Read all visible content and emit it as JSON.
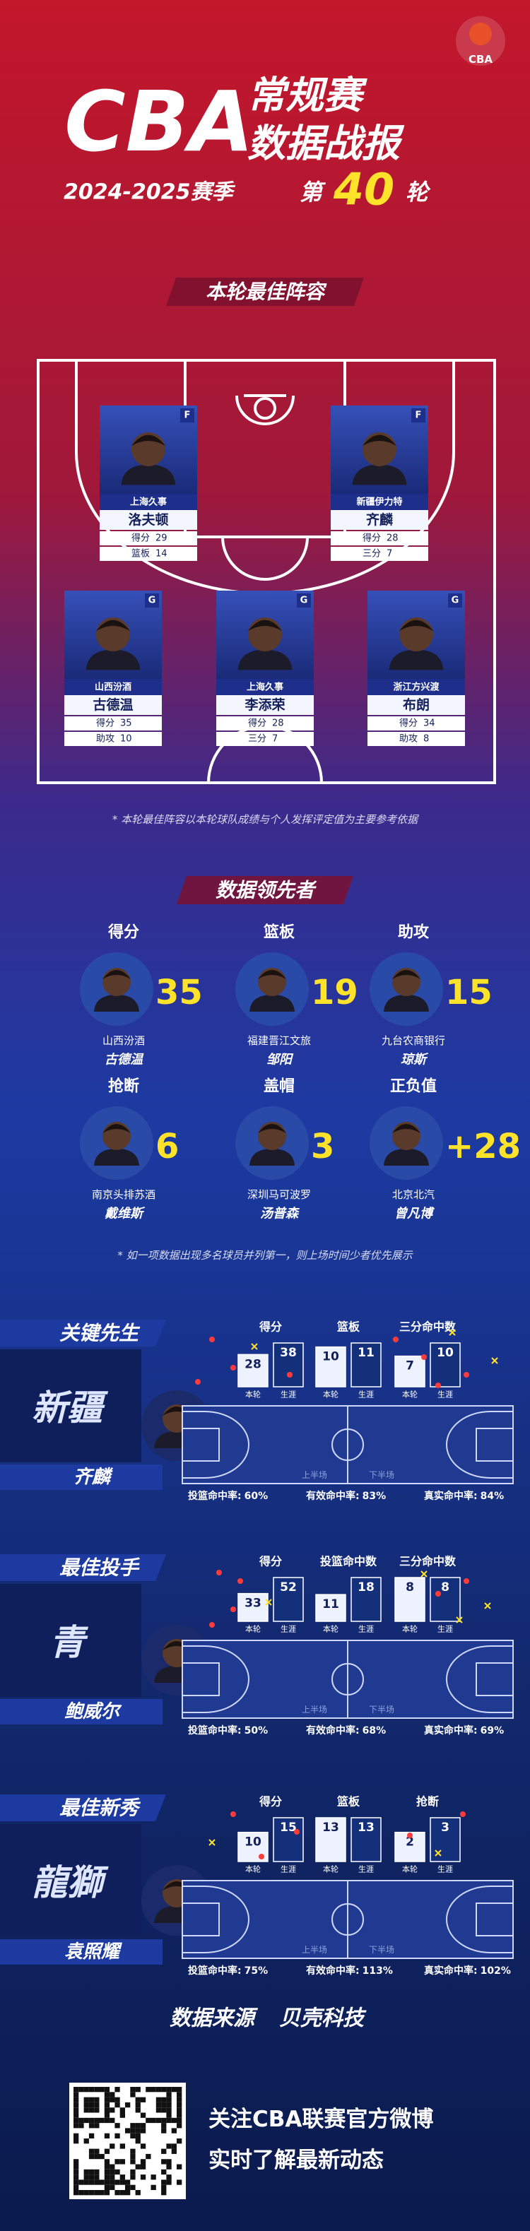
{
  "header": {
    "logo": "CBA",
    "title_main": "CBA",
    "title_line1": "常规赛",
    "title_line2": "数据战报",
    "season": "2024-2025赛季",
    "round_prefix": "第",
    "round": 40,
    "round_suffix": "轮"
  },
  "best_lineup": {
    "title": "本轮最佳阵容",
    "players": [
      {
        "position": "F",
        "team": "上海久事",
        "name": "洛夫顿",
        "stats": [
          {
            "label": "得分",
            "value": 29
          },
          {
            "label": "篮板",
            "value": 14
          }
        ]
      },
      {
        "position": "F",
        "team": "新疆伊力特",
        "name": "齐麟",
        "stats": [
          {
            "label": "得分",
            "value": 28
          },
          {
            "label": "三分",
            "value": 7
          }
        ]
      },
      {
        "position": "G",
        "team": "山西汾酒",
        "name": "古德温",
        "stats": [
          {
            "label": "得分",
            "value": 35
          },
          {
            "label": "助攻",
            "value": 10
          }
        ]
      },
      {
        "position": "G",
        "team": "上海久事",
        "name": "李添荣",
        "stats": [
          {
            "label": "得分",
            "value": 28
          },
          {
            "label": "三分",
            "value": 7
          }
        ]
      },
      {
        "position": "G",
        "team": "浙江方兴渡",
        "name": "布朗",
        "stats": [
          {
            "label": "得分",
            "value": 34
          },
          {
            "label": "助攻",
            "value": 8
          }
        ]
      }
    ],
    "note": "* 本轮最佳阵容以本轮球队成绩与个人发挥评定值为主要参考依据"
  },
  "leaders": {
    "title": "数据领先者",
    "items": [
      {
        "category": "得分",
        "value": 35,
        "team": "山西汾酒",
        "name": "古德温"
      },
      {
        "category": "篮板",
        "value": 19,
        "team": "福建晋江文旅",
        "name": "邹阳"
      },
      {
        "category": "助攻",
        "value": 15,
        "team": "九台农商银行",
        "name": "琼斯"
      },
      {
        "category": "抢断",
        "value": 6,
        "team": "南京头排苏酒",
        "name": "戴维斯"
      },
      {
        "category": "盖帽",
        "value": 3,
        "team": "深圳马可波罗",
        "name": "汤普森"
      },
      {
        "category": "正负值",
        "value": "+28",
        "team": "北京北汽",
        "name": "曾凡博"
      }
    ],
    "note": "* 如一项数据出现多名球员并列第一，则上场时间少者优先展示"
  },
  "awards": [
    {
      "title": "关键先生",
      "name": "齐麟",
      "team_logo": "新疆",
      "stats": [
        {
          "label": "得分",
          "current": 28,
          "career": 38,
          "current_label": "本轮",
          "career_label": "生涯"
        },
        {
          "label": "篮板",
          "current": 10,
          "career": 11,
          "current_label": "本轮",
          "career_label": "生涯"
        },
        {
          "label": "三分命中数",
          "current": 7,
          "career": 10,
          "current_label": "本轮",
          "career_label": "生涯"
        }
      ],
      "court": {
        "first_half": "上半场",
        "second_half": "下半场"
      },
      "rates": [
        {
          "label": "投篮命中率:",
          "value": "60%"
        },
        {
          "label": "有效命中率:",
          "value": "83%"
        },
        {
          "label": "真实命中率:",
          "value": "84%"
        }
      ]
    },
    {
      "title": "最佳投手",
      "name": "鲍威尔",
      "team_logo": "青",
      "stats": [
        {
          "label": "得分",
          "current": 33,
          "career": 52,
          "current_label": "本轮",
          "career_label": "生涯"
        },
        {
          "label": "投篮命中数",
          "current": 11,
          "career": 18,
          "current_label": "本轮",
          "career_label": "生涯"
        },
        {
          "label": "三分命中数",
          "current": 8,
          "career": 8,
          "current_label": "本轮",
          "career_label": "生涯"
        }
      ],
      "court": {
        "first_half": "上半场",
        "second_half": "下半场"
      },
      "rates": [
        {
          "label": "投篮命中率:",
          "value": "50%"
        },
        {
          "label": "有效命中率:",
          "value": "68%"
        },
        {
          "label": "真实命中率:",
          "value": "69%"
        }
      ]
    },
    {
      "title": "最佳新秀",
      "name": "袁照耀",
      "team_logo": "龍獅",
      "stats": [
        {
          "label": "得分",
          "current": 10,
          "career": 15,
          "current_label": "本轮",
          "career_label": "生涯"
        },
        {
          "label": "篮板",
          "current": 13,
          "career": 13,
          "current_label": "本轮",
          "career_label": "生涯"
        },
        {
          "label": "抢断",
          "current": 2,
          "career": 3,
          "current_label": "本轮",
          "career_label": "生涯"
        }
      ],
      "court": {
        "first_half": "上半场",
        "second_half": "下半场"
      },
      "rates": [
        {
          "label": "投篮命中率:",
          "value": "75%"
        },
        {
          "label": "有效命中率:",
          "value": "113%"
        },
        {
          "label": "真实命中率:",
          "value": "102%"
        }
      ]
    }
  ],
  "source": {
    "label": "数据来源",
    "provider": "贝壳科技"
  },
  "footer": {
    "line1": "关注CBA联赛官方微博",
    "line2": "实时了解最新动态"
  }
}
